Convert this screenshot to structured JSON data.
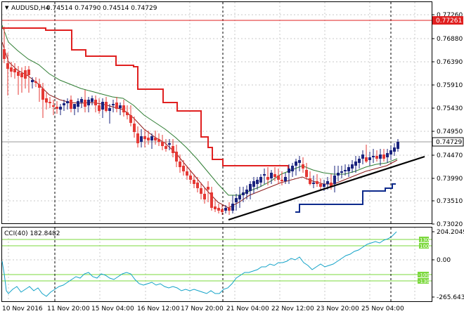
{
  "header": {
    "arrow": "▼",
    "symbol_text": "AUDUSD,H4",
    "ohlc_text": "0.74514 0.74790 0.74514 0.74729"
  },
  "indicator": {
    "label_text": "CCI(40) 182.8482",
    "period": 40,
    "value": 182.8482,
    "levels": {
      "130": "130",
      "100": "100",
      "neg100": "-100",
      "neg130": "-130"
    },
    "line_color": "#13a3c8",
    "level_color": "#7bd83c"
  },
  "price_axis": {
    "ticks": [
      "0.77260",
      "0.76880",
      "0.76390",
      "0.75910",
      "0.75430",
      "0.74950",
      "0.74470",
      "0.73990",
      "0.73510",
      "0.73020"
    ],
    "current_price_tag": "0.74729",
    "red_level_tag": "0.77261"
  },
  "cci_axis": {
    "ticks": [
      "204.2049",
      "0.00",
      "-265.643"
    ]
  },
  "time_axis": {
    "labels": [
      "10 Nov 2016",
      "11 Nov 20:00",
      "15 Nov 04:00",
      "16 Nov 12:00",
      "17 Nov 20:00",
      "21 Nov 04:00",
      "22 Nov 12:00",
      "23 Nov 20:00",
      "25 Nov 04:00"
    ]
  },
  "colors": {
    "bull_candle": "#1a237e",
    "bear_candle": "#e53935",
    "stop_line_upper": "#e02020",
    "stop_line_lower": "#0d2a8c",
    "ma_fast": "#8b1a1a",
    "ma_slow": "#2e7d32",
    "trendline": "#000000",
    "red_level": "#e02020"
  }
}
